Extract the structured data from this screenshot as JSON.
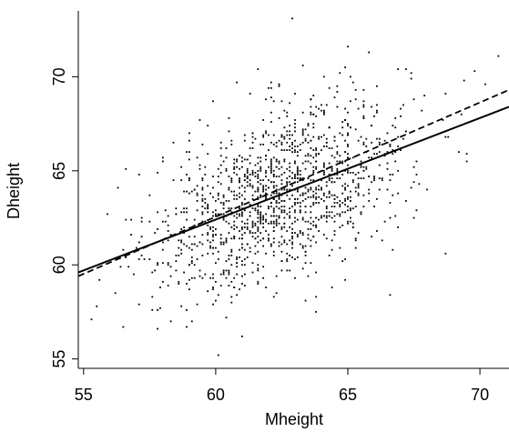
{
  "chart_data": {
    "type": "scatter",
    "xlabel": "Mheight",
    "ylabel": "Dheight",
    "xlim": [
      54.8,
      71.1
    ],
    "ylim": [
      54.5,
      73.5
    ],
    "xticks": [
      55,
      60,
      65,
      70
    ],
    "yticks": [
      55,
      60,
      65,
      70
    ],
    "grid": false,
    "legend": "none",
    "point_cloud": {
      "n_points": 1375,
      "x_mean": 62.45,
      "x_sd": 2.41,
      "y_mean": 63.75,
      "y_sd": 2.6,
      "correlation": 0.49,
      "outliers": [
        {
          "x": 55.3,
          "y": 57.1
        },
        {
          "x": 55.5,
          "y": 57.8
        },
        {
          "x": 57.8,
          "y": 56.6
        },
        {
          "x": 60.1,
          "y": 55.2
        },
        {
          "x": 61.0,
          "y": 56.2
        },
        {
          "x": 62.9,
          "y": 73.1
        },
        {
          "x": 65.0,
          "y": 71.6
        },
        {
          "x": 66.6,
          "y": 58.4
        },
        {
          "x": 68.7,
          "y": 60.6
        },
        {
          "x": 69.8,
          "y": 70.3
        },
        {
          "x": 70.7,
          "y": 71.1
        }
      ]
    },
    "lines": [
      {
        "style": "solid",
        "x": [
          54.8,
          71.1
        ],
        "y": [
          59.6,
          68.4
        ]
      },
      {
        "style": "dashed",
        "x": [
          54.8,
          71.1
        ],
        "y": [
          59.4,
          69.3
        ]
      }
    ],
    "colors": {
      "points": "#000000",
      "lines": "#000000"
    }
  }
}
